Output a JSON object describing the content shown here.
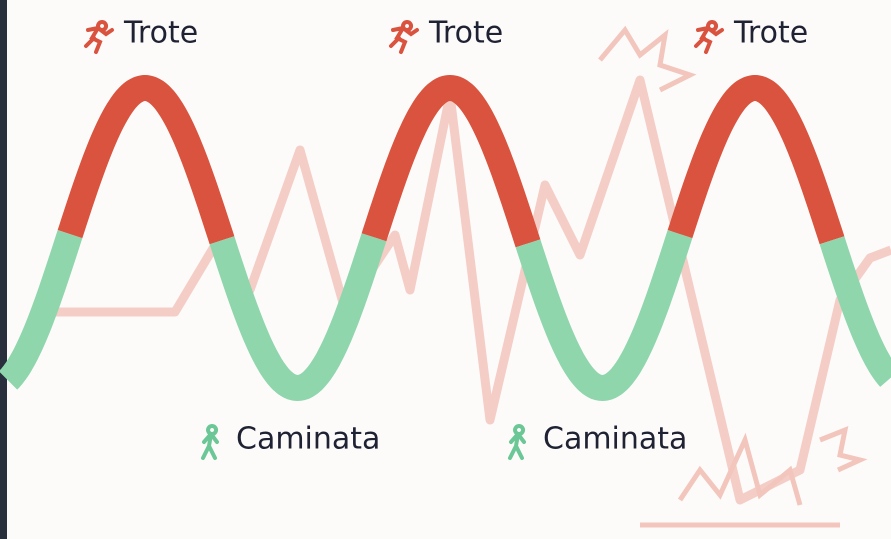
{
  "top_labels": [
    "Trote",
    "Trote",
    "Trote"
  ],
  "bottom_labels": [
    "Caminata",
    "Caminata"
  ]
}
